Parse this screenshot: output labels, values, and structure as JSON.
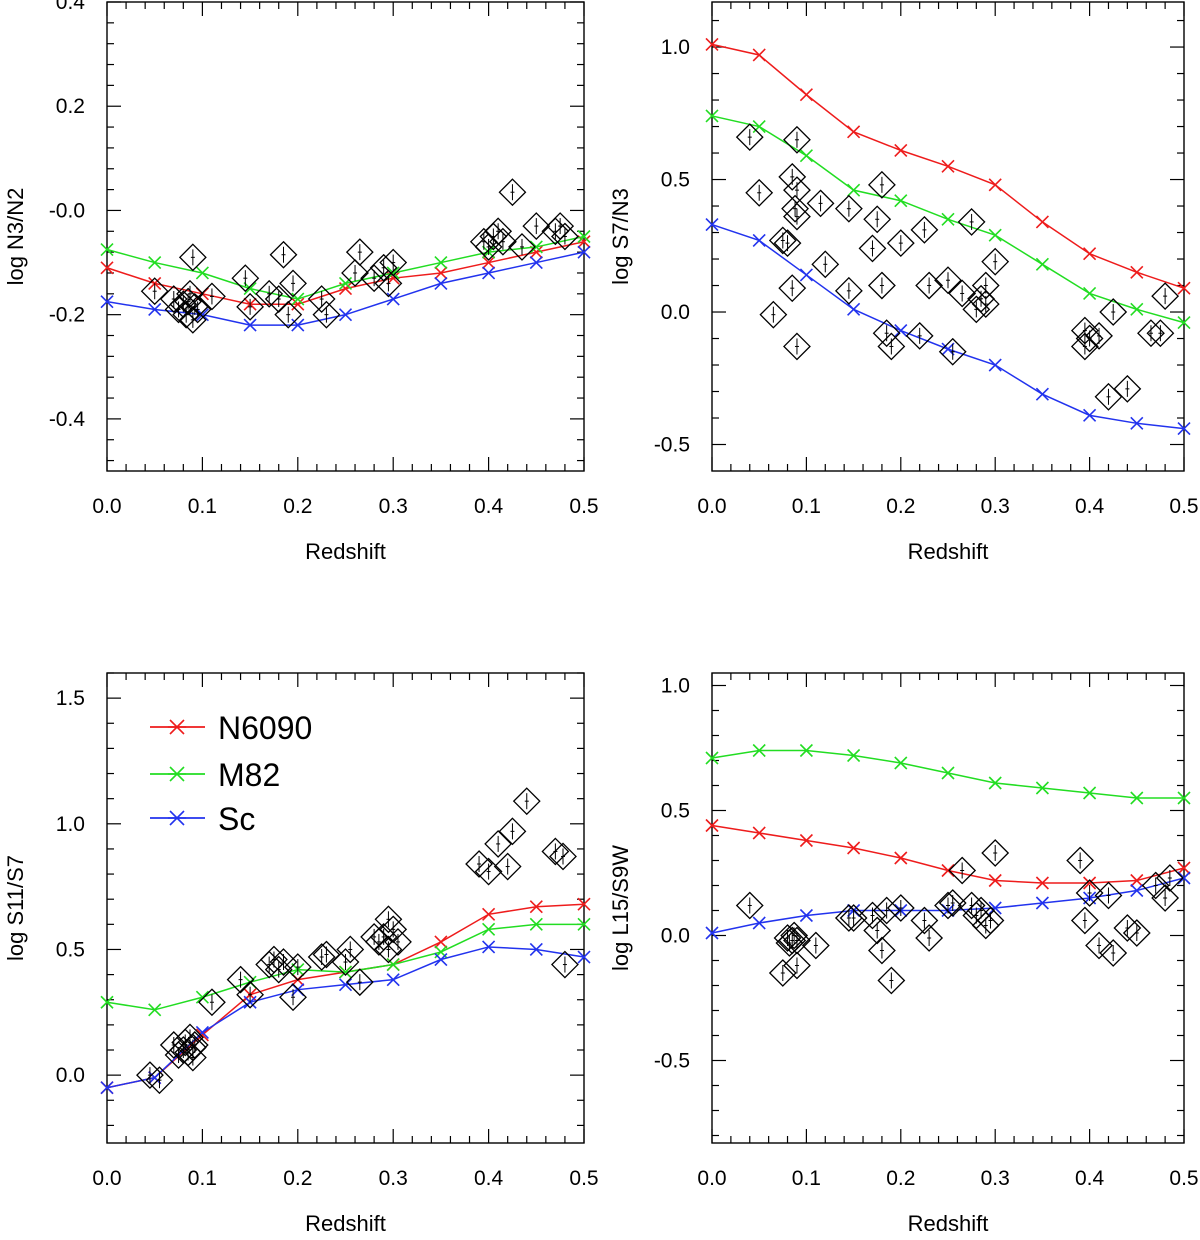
{
  "series_colors": {
    "N6090": "#ee1c1c",
    "M82": "#22dd22",
    "Sc": "#2233ee"
  },
  "legend": [
    {
      "name": "N6090",
      "color": "#ee1c1c"
    },
    {
      "name": "M82",
      "color": "#22dd22"
    },
    {
      "name": "Sc",
      "color": "#2233ee"
    }
  ],
  "chart_data": [
    {
      "id": "n3n2",
      "type": "line",
      "title": "",
      "xlabel": "Redshift",
      "ylabel": "log N3/N2",
      "xlim": [
        0,
        0.5
      ],
      "ylim": [
        -0.5,
        0.4
      ],
      "xticks": [
        0,
        0.1,
        0.2,
        0.3,
        0.4,
        0.5
      ],
      "xtick_labels": [
        "0.0",
        "0.1",
        "0.2",
        "0.3",
        "0.4",
        "0.5"
      ],
      "yticks": [
        -0.4,
        -0.2,
        0,
        0.2,
        0.4
      ],
      "ytick_labels": [
        "-0.4",
        "-0.2",
        "-0.0",
        "0.2",
        "0.4"
      ],
      "x": [
        0,
        0.05,
        0.1,
        0.15,
        0.2,
        0.25,
        0.3,
        0.35,
        0.4,
        0.45,
        0.5
      ],
      "series": [
        {
          "name": "N6090",
          "values": [
            -0.11,
            -0.14,
            -0.16,
            -0.18,
            -0.18,
            -0.15,
            -0.13,
            -0.12,
            -0.1,
            -0.08,
            -0.06
          ]
        },
        {
          "name": "M82",
          "values": [
            -0.075,
            -0.1,
            -0.12,
            -0.15,
            -0.17,
            -0.14,
            -0.12,
            -0.1,
            -0.08,
            -0.07,
            -0.05
          ]
        },
        {
          "name": "Sc",
          "values": [
            -0.175,
            -0.19,
            -0.2,
            -0.22,
            -0.22,
            -0.2,
            -0.17,
            -0.14,
            -0.12,
            -0.1,
            -0.08
          ]
        }
      ],
      "observed": [
        {
          "x": 0.05,
          "y": -0.155
        },
        {
          "x": 0.07,
          "y": -0.17
        },
        {
          "x": 0.075,
          "y": -0.19
        },
        {
          "x": 0.08,
          "y": -0.18
        },
        {
          "x": 0.083,
          "y": -0.2
        },
        {
          "x": 0.085,
          "y": -0.175
        },
        {
          "x": 0.087,
          "y": -0.16
        },
        {
          "x": 0.09,
          "y": -0.21
        },
        {
          "x": 0.092,
          "y": -0.185
        },
        {
          "x": 0.095,
          "y": -0.19
        },
        {
          "x": 0.09,
          "y": -0.09
        },
        {
          "x": 0.11,
          "y": -0.165
        },
        {
          "x": 0.145,
          "y": -0.13
        },
        {
          "x": 0.15,
          "y": -0.185
        },
        {
          "x": 0.17,
          "y": -0.16
        },
        {
          "x": 0.18,
          "y": -0.17
        },
        {
          "x": 0.185,
          "y": -0.085
        },
        {
          "x": 0.19,
          "y": -0.2
        },
        {
          "x": 0.195,
          "y": -0.14
        },
        {
          "x": 0.225,
          "y": -0.17
        },
        {
          "x": 0.23,
          "y": -0.2
        },
        {
          "x": 0.26,
          "y": -0.12
        },
        {
          "x": 0.265,
          "y": -0.08
        },
        {
          "x": 0.28,
          "y": -0.13
        },
        {
          "x": 0.29,
          "y": -0.11
        },
        {
          "x": 0.295,
          "y": -0.14
        },
        {
          "x": 0.3,
          "y": -0.1
        },
        {
          "x": 0.395,
          "y": -0.06
        },
        {
          "x": 0.4,
          "y": -0.07
        },
        {
          "x": 0.405,
          "y": -0.05
        },
        {
          "x": 0.41,
          "y": -0.04
        },
        {
          "x": 0.415,
          "y": -0.06
        },
        {
          "x": 0.425,
          "y": 0.035
        },
        {
          "x": 0.435,
          "y": -0.07
        },
        {
          "x": 0.45,
          "y": -0.03
        },
        {
          "x": 0.47,
          "y": -0.04
        },
        {
          "x": 0.475,
          "y": -0.03
        },
        {
          "x": 0.48,
          "y": -0.05
        }
      ]
    },
    {
      "id": "s7n3",
      "type": "line",
      "title": "",
      "xlabel": "Redshift",
      "ylabel": "log S7/N3",
      "xlim": [
        0,
        0.5
      ],
      "ylim": [
        -0.6,
        1.17
      ],
      "xticks": [
        0,
        0.1,
        0.2,
        0.3,
        0.4,
        0.5
      ],
      "xtick_labels": [
        "0.0",
        "0.1",
        "0.2",
        "0.3",
        "0.4",
        "0.5"
      ],
      "yticks": [
        -0.5,
        0,
        0.5,
        1
      ],
      "ytick_labels": [
        "-0.5",
        "0.0",
        "0.5",
        "1.0"
      ],
      "x": [
        0,
        0.05,
        0.1,
        0.15,
        0.2,
        0.25,
        0.3,
        0.35,
        0.4,
        0.45,
        0.5
      ],
      "series": [
        {
          "name": "N6090",
          "values": [
            1.01,
            0.97,
            0.82,
            0.68,
            0.61,
            0.55,
            0.48,
            0.34,
            0.22,
            0.15,
            0.09
          ]
        },
        {
          "name": "M82",
          "values": [
            0.74,
            0.7,
            0.59,
            0.46,
            0.42,
            0.35,
            0.29,
            0.18,
            0.07,
            0.01,
            -0.04
          ]
        },
        {
          "name": "Sc",
          "values": [
            0.33,
            0.27,
            0.14,
            0.01,
            -0.07,
            -0.14,
            -0.2,
            -0.31,
            -0.39,
            -0.42,
            -0.44
          ]
        }
      ],
      "observed": [
        {
          "x": 0.04,
          "y": 0.66
        },
        {
          "x": 0.05,
          "y": 0.45
        },
        {
          "x": 0.065,
          "y": -0.01
        },
        {
          "x": 0.075,
          "y": 0.27
        },
        {
          "x": 0.08,
          "y": 0.26
        },
        {
          "x": 0.085,
          "y": 0.09
        },
        {
          "x": 0.085,
          "y": 0.51
        },
        {
          "x": 0.088,
          "y": 0.39
        },
        {
          "x": 0.09,
          "y": 0.46
        },
        {
          "x": 0.09,
          "y": 0.36
        },
        {
          "x": 0.09,
          "y": -0.13
        },
        {
          "x": 0.09,
          "y": 0.65
        },
        {
          "x": 0.115,
          "y": 0.41
        },
        {
          "x": 0.12,
          "y": 0.18
        },
        {
          "x": 0.145,
          "y": 0.39
        },
        {
          "x": 0.145,
          "y": 0.08
        },
        {
          "x": 0.17,
          "y": 0.24
        },
        {
          "x": 0.175,
          "y": 0.35
        },
        {
          "x": 0.18,
          "y": 0.48
        },
        {
          "x": 0.18,
          "y": 0.1
        },
        {
          "x": 0.185,
          "y": -0.08
        },
        {
          "x": 0.19,
          "y": -0.13
        },
        {
          "x": 0.2,
          "y": 0.26
        },
        {
          "x": 0.22,
          "y": -0.09
        },
        {
          "x": 0.225,
          "y": 0.31
        },
        {
          "x": 0.23,
          "y": 0.1
        },
        {
          "x": 0.25,
          "y": 0.12
        },
        {
          "x": 0.255,
          "y": -0.15
        },
        {
          "x": 0.265,
          "y": 0.07
        },
        {
          "x": 0.275,
          "y": 0.34
        },
        {
          "x": 0.28,
          "y": 0.01
        },
        {
          "x": 0.285,
          "y": 0.05
        },
        {
          "x": 0.29,
          "y": 0.03
        },
        {
          "x": 0.29,
          "y": 0.1
        },
        {
          "x": 0.3,
          "y": 0.19
        },
        {
          "x": 0.395,
          "y": -0.07
        },
        {
          "x": 0.395,
          "y": -0.13
        },
        {
          "x": 0.4,
          "y": -0.1
        },
        {
          "x": 0.41,
          "y": -0.09
        },
        {
          "x": 0.42,
          "y": -0.32
        },
        {
          "x": 0.425,
          "y": 0.0
        },
        {
          "x": 0.44,
          "y": -0.29
        },
        {
          "x": 0.465,
          "y": -0.08
        },
        {
          "x": 0.475,
          "y": -0.08
        },
        {
          "x": 0.48,
          "y": 0.06
        }
      ]
    },
    {
      "id": "s11s7",
      "type": "line",
      "title": "",
      "xlabel": "Redshift",
      "ylabel": "log S11/S7",
      "xlim": [
        0,
        0.5
      ],
      "ylim": [
        -0.27,
        1.6
      ],
      "xticks": [
        0,
        0.1,
        0.2,
        0.3,
        0.4,
        0.5
      ],
      "xtick_labels": [
        "0.0",
        "0.1",
        "0.2",
        "0.3",
        "0.4",
        "0.5"
      ],
      "yticks": [
        0,
        0.5,
        1,
        1.5
      ],
      "ytick_labels": [
        "0.0",
        "0.5",
        "1.0",
        "1.5"
      ],
      "x": [
        0,
        0.05,
        0.1,
        0.15,
        0.2,
        0.25,
        0.3,
        0.35,
        0.4,
        0.45,
        0.5
      ],
      "series": [
        {
          "name": "N6090",
          "values": [
            -0.05,
            -0.01,
            0.16,
            0.32,
            0.38,
            0.41,
            0.44,
            0.53,
            0.64,
            0.67,
            0.68
          ]
        },
        {
          "name": "M82",
          "values": [
            0.29,
            0.26,
            0.31,
            0.37,
            0.42,
            0.41,
            0.44,
            0.49,
            0.58,
            0.6,
            0.6
          ]
        },
        {
          "name": "Sc",
          "values": [
            -0.05,
            -0.01,
            0.17,
            0.29,
            0.34,
            0.36,
            0.38,
            0.46,
            0.51,
            0.5,
            0.47
          ]
        }
      ],
      "observed": [
        {
          "x": 0.045,
          "y": 0.0
        },
        {
          "x": 0.055,
          "y": -0.02
        },
        {
          "x": 0.07,
          "y": 0.12
        },
        {
          "x": 0.075,
          "y": 0.08
        },
        {
          "x": 0.08,
          "y": 0.1
        },
        {
          "x": 0.082,
          "y": 0.13
        },
        {
          "x": 0.085,
          "y": 0.09
        },
        {
          "x": 0.087,
          "y": 0.15
        },
        {
          "x": 0.09,
          "y": 0.11
        },
        {
          "x": 0.09,
          "y": 0.07
        },
        {
          "x": 0.092,
          "y": 0.12
        },
        {
          "x": 0.11,
          "y": 0.29
        },
        {
          "x": 0.14,
          "y": 0.38
        },
        {
          "x": 0.15,
          "y": 0.32
        },
        {
          "x": 0.17,
          "y": 0.44
        },
        {
          "x": 0.175,
          "y": 0.46
        },
        {
          "x": 0.18,
          "y": 0.42
        },
        {
          "x": 0.185,
          "y": 0.45
        },
        {
          "x": 0.195,
          "y": 0.31
        },
        {
          "x": 0.2,
          "y": 0.43
        },
        {
          "x": 0.225,
          "y": 0.47
        },
        {
          "x": 0.23,
          "y": 0.48
        },
        {
          "x": 0.25,
          "y": 0.45
        },
        {
          "x": 0.255,
          "y": 0.5
        },
        {
          "x": 0.265,
          "y": 0.37
        },
        {
          "x": 0.28,
          "y": 0.55
        },
        {
          "x": 0.285,
          "y": 0.53
        },
        {
          "x": 0.29,
          "y": 0.55
        },
        {
          "x": 0.295,
          "y": 0.5
        },
        {
          "x": 0.295,
          "y": 0.62
        },
        {
          "x": 0.3,
          "y": 0.58
        },
        {
          "x": 0.305,
          "y": 0.53
        },
        {
          "x": 0.39,
          "y": 0.84
        },
        {
          "x": 0.4,
          "y": 0.81
        },
        {
          "x": 0.41,
          "y": 0.92
        },
        {
          "x": 0.42,
          "y": 0.83
        },
        {
          "x": 0.425,
          "y": 0.97
        },
        {
          "x": 0.44,
          "y": 1.09
        },
        {
          "x": 0.47,
          "y": 0.89
        },
        {
          "x": 0.478,
          "y": 0.87
        },
        {
          "x": 0.48,
          "y": 0.44
        }
      ]
    },
    {
      "id": "l15s9w",
      "type": "line",
      "title": "",
      "xlabel": "Redshift",
      "ylabel": "log L15/S9W",
      "xlim": [
        0,
        0.5
      ],
      "ylim": [
        -0.83,
        1.05
      ],
      "xticks": [
        0,
        0.1,
        0.2,
        0.3,
        0.4,
        0.5
      ],
      "xtick_labels": [
        "0.0",
        "0.1",
        "0.2",
        "0.3",
        "0.4",
        "0.5"
      ],
      "yticks": [
        -0.5,
        0,
        0.5,
        1
      ],
      "ytick_labels": [
        "-0.5",
        "0.0",
        "0.5",
        "1.0"
      ],
      "x": [
        0,
        0.05,
        0.1,
        0.15,
        0.2,
        0.25,
        0.3,
        0.35,
        0.4,
        0.45,
        0.5
      ],
      "series": [
        {
          "name": "N6090",
          "values": [
            0.44,
            0.41,
            0.38,
            0.35,
            0.31,
            0.26,
            0.22,
            0.21,
            0.21,
            0.22,
            0.27
          ]
        },
        {
          "name": "M82",
          "values": [
            0.71,
            0.74,
            0.74,
            0.72,
            0.69,
            0.65,
            0.61,
            0.59,
            0.57,
            0.55,
            0.55
          ]
        },
        {
          "name": "Sc",
          "values": [
            0.01,
            0.05,
            0.08,
            0.1,
            0.1,
            0.1,
            0.11,
            0.13,
            0.15,
            0.18,
            0.23
          ]
        }
      ],
      "observed": [
        {
          "x": 0.04,
          "y": 0.12
        },
        {
          "x": 0.075,
          "y": -0.15
        },
        {
          "x": 0.08,
          "y": -0.01
        },
        {
          "x": 0.082,
          "y": -0.03
        },
        {
          "x": 0.085,
          "y": -0.02
        },
        {
          "x": 0.087,
          "y": 0.0
        },
        {
          "x": 0.09,
          "y": -0.12
        },
        {
          "x": 0.09,
          "y": -0.02
        },
        {
          "x": 0.11,
          "y": -0.04
        },
        {
          "x": 0.145,
          "y": 0.07
        },
        {
          "x": 0.15,
          "y": 0.07
        },
        {
          "x": 0.17,
          "y": 0.08
        },
        {
          "x": 0.175,
          "y": 0.02
        },
        {
          "x": 0.18,
          "y": -0.06
        },
        {
          "x": 0.185,
          "y": 0.1
        },
        {
          "x": 0.19,
          "y": -0.18
        },
        {
          "x": 0.2,
          "y": 0.11
        },
        {
          "x": 0.225,
          "y": 0.06
        },
        {
          "x": 0.23,
          "y": -0.01
        },
        {
          "x": 0.25,
          "y": 0.12
        },
        {
          "x": 0.255,
          "y": 0.13
        },
        {
          "x": 0.265,
          "y": 0.26
        },
        {
          "x": 0.275,
          "y": 0.12
        },
        {
          "x": 0.28,
          "y": 0.08
        },
        {
          "x": 0.285,
          "y": 0.1
        },
        {
          "x": 0.29,
          "y": 0.04
        },
        {
          "x": 0.295,
          "y": 0.06
        },
        {
          "x": 0.3,
          "y": 0.33
        },
        {
          "x": 0.39,
          "y": 0.3
        },
        {
          "x": 0.395,
          "y": 0.06
        },
        {
          "x": 0.4,
          "y": 0.17
        },
        {
          "x": 0.41,
          "y": -0.04
        },
        {
          "x": 0.42,
          "y": 0.16
        },
        {
          "x": 0.425,
          "y": -0.07
        },
        {
          "x": 0.44,
          "y": 0.03
        },
        {
          "x": 0.45,
          "y": 0.01
        },
        {
          "x": 0.47,
          "y": 0.2
        },
        {
          "x": 0.48,
          "y": 0.15
        },
        {
          "x": 0.485,
          "y": 0.23
        }
      ]
    }
  ]
}
